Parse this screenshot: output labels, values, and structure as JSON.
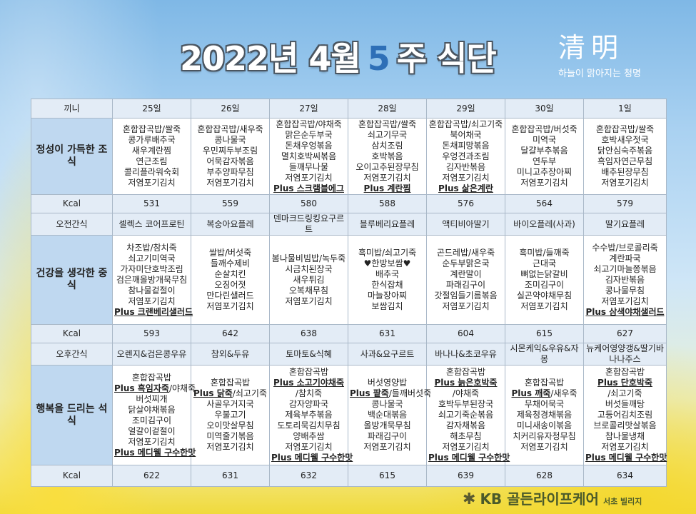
{
  "title": {
    "prefix": "2022년 4월",
    "week": "5",
    "suffix": "주 식단"
  },
  "seal": {
    "hanja": "清明",
    "subtitle": "하늘이 맑아지는 청명"
  },
  "header": {
    "label": "끼니",
    "days": [
      "25일",
      "26일",
      "27일",
      "28일",
      "29일",
      "30일",
      "1일"
    ]
  },
  "breakfast": {
    "label": "정성이 가득한 조식",
    "items": [
      [
        "혼합잡곡밥/쌀죽",
        "콩가루배추국",
        "새우계란찜",
        "연근조림",
        "콜리플라워숙회",
        "저염포기김치"
      ],
      [
        "혼합잡곡밥/새우죽",
        "콩나물국",
        "우민찌두부조림",
        "어묵감자볶음",
        "부추양파무침",
        "저염포기김치"
      ],
      [
        "혼합잡곡밥/야채죽",
        "맑은순두부국",
        "돈채우엉볶음",
        "멸치호박씨볶음",
        "들깨무나물",
        "저염포기김치",
        {
          "plus": "Plus 스크램블에그"
        }
      ],
      [
        "혼합잡곡밥/쌀죽",
        "쇠고기무국",
        "삼치조림",
        "호박볶음",
        "오이고추된장무침",
        "저염포기김치",
        {
          "plus": "Plus 계란찜"
        }
      ],
      [
        "혼합잡곡밥/쇠고기죽",
        "북어채국",
        "돈채피망볶음",
        "우엉견과조림",
        "김자반볶음",
        "저염포기김치",
        {
          "plus": "Plus 삶은계란"
        }
      ],
      [
        "혼합잡곡밥/버섯죽",
        "미역국",
        "달걀부추볶음",
        "연두부",
        "미니고추장아찌",
        "저염포기김치"
      ],
      [
        "혼합잡곡밥/쌀죽",
        "호박새우젓국",
        "닭안심숙주볶음",
        "흑임자연근무침",
        "배추된장무침",
        "저염포기김치"
      ]
    ],
    "kcal": [
      "531",
      "559",
      "580",
      "588",
      "576",
      "564",
      "579"
    ]
  },
  "am_snack": {
    "label": "오전간식",
    "items": [
      "셀렉스 코어프로틴",
      "복숭아요플레",
      "덴마크드링킹요구르트",
      "블루베리요플레",
      "액티비아딸기",
      "바이오플레(사과)",
      "딸기요플레"
    ]
  },
  "lunch": {
    "label": "건강을 생각한 중식",
    "items": [
      [
        "차조밥/참치죽",
        "쇠고기미역국",
        "가자미단호박조림",
        "검은깨올방개묵무침",
        "참나물겉절이",
        "저염포기김치",
        {
          "plus": "Plus 크랜베리샐러드"
        }
      ],
      [
        "쌀밥/버섯죽",
        "들깨수제비",
        "순살치킨",
        "오징어젓",
        "만다린샐러드",
        "저염포기김치"
      ],
      [
        "봄나물비빔밥/녹두죽",
        "시금치된장국",
        "새우튀김",
        "오복채무침",
        "저염포기김치"
      ],
      [
        "흑미밥/쇠고기죽",
        "♥한방보쌈♥",
        "배추국",
        "한식잡채",
        "마늘장아찌",
        "보쌈김치"
      ],
      [
        "곤드레밥/새우죽",
        "순두부맑은국",
        "계란말이",
        "파래김구이",
        "갓절임들기름볶음",
        "저염포기김치"
      ],
      [
        "흑미밥/들깨죽",
        "근대국",
        "뼈없는닭갈비",
        "조미김구이",
        "실곤약야채무침",
        "저염포기김치"
      ],
      [
        "수수밥/브로콜리죽",
        "계란파국",
        "쇠고기마늘쫑볶음",
        "김자반볶음",
        "콩나물무침",
        "저염포기김치",
        {
          "plus": "Plus 삼색야채샐러드"
        }
      ]
    ],
    "kcal": [
      "593",
      "642",
      "638",
      "631",
      "604",
      "615",
      "627"
    ]
  },
  "pm_snack": {
    "label": "오후간식",
    "items": [
      "오렌지&검은콩우유",
      "참외&두유",
      "토마토&식혜",
      "사과&요구르트",
      "바나나&초코우유",
      "시몬케익&우유&자몽",
      "뉴케어영양갱&딸기바나나주스"
    ]
  },
  "dinner": {
    "label": "행복을 드리는 석식",
    "items": [
      [
        "혼합잡곡밥",
        {
          "plus": "Plus 흑임자죽",
          "rest": "/야채죽"
        },
        "버섯찌개",
        "닭살야채볶음",
        "조미김구이",
        "얼갈이겉절이",
        "저염포기김치",
        {
          "plus": "Plus 메디웰 구수한맛"
        }
      ],
      [
        "혼합잡곡밥",
        {
          "plus": "Plus 닭죽",
          "rest": "/쇠고기죽"
        },
        "사골우거지국",
        "우불고기",
        "오이맛살무침",
        "미역줄기볶음",
        "저염포기김치"
      ],
      [
        "혼합잡곡밥",
        {
          "plus": "Plus 소고기야채죽"
        },
        "/참치죽",
        "감자양파국",
        "제육부추볶음",
        "도토리묵김치무침",
        "양배추쌈",
        "저염포기김치",
        {
          "plus": "Plus 메디웰 구수한맛"
        }
      ],
      [
        "버섯영양밥",
        {
          "plus": "Plus 팥죽",
          "rest": "/들깨버섯죽"
        },
        "콩나물국",
        "백순대볶음",
        "올방개묵무침",
        "파래김구이",
        "저염포기김치"
      ],
      [
        "혼합잡곡밥",
        {
          "plus": "Plus 늙은호박죽"
        },
        "/야채죽",
        "호박두부된장국",
        "쇠고기죽순볶음",
        "감자채볶음",
        "해초무침",
        "저염포기김치",
        {
          "plus": "Plus 메디웰 구수한맛"
        }
      ],
      [
        "혼합잡곡밥",
        {
          "plus": "Plus 깨죽",
          "rest": "/새우죽"
        },
        "무채어묵국",
        "제육청경채볶음",
        "미니새송이볶음",
        "치커리유자청무침",
        "저염포기김치"
      ],
      [
        "혼합잡곡밥",
        {
          "plus": "Plus 단호박죽"
        },
        "/쇠고기죽",
        "버섯들깨탕",
        "고등어김치조림",
        "브로콜리맛살볶음",
        "참나물냉채",
        "저염포기김치",
        {
          "plus": "Plus 메디웰 구수한맛"
        }
      ]
    ],
    "kcal": [
      "622",
      "631",
      "632",
      "615",
      "639",
      "628",
      "634"
    ]
  },
  "kcal_label": "Kcal",
  "footer": {
    "brand": "KB 골든라이프케어",
    "branch": "서초 빌리지"
  },
  "colors": {
    "week_number": "#2e6fb7",
    "label_bg": "#bfd8f0",
    "row_bg": "#e3ecf6"
  }
}
